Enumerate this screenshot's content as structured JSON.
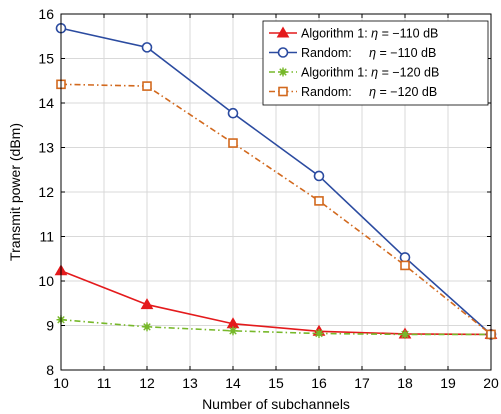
{
  "chart_data": {
    "type": "line",
    "title": "",
    "xlabel": "Number of subchannels",
    "ylabel": "Transmit power (dBm)",
    "x": [
      10,
      12,
      14,
      16,
      18,
      20
    ],
    "xlim": [
      10,
      20
    ],
    "ylim": [
      8,
      16
    ],
    "xticks": [
      10,
      11,
      12,
      13,
      14,
      15,
      16,
      17,
      18,
      19,
      20
    ],
    "yticks": [
      8,
      9,
      10,
      11,
      12,
      13,
      14,
      15,
      16
    ],
    "grid": true,
    "legend_position": "top-right",
    "series": [
      {
        "name": "Algorithm 1: η = −110 dB",
        "legend_prefix": "Algorithm 1: ",
        "legend_eta": "η",
        "legend_suffix": " = −110 dB",
        "color": "#e41a1c",
        "marker": "triangle",
        "dash": "solid",
        "values": [
          10.23,
          9.47,
          9.04,
          8.87,
          8.81,
          8.8
        ]
      },
      {
        "name": "Random:     η = −110 dB",
        "legend_prefix": "Random:     ",
        "legend_eta": "η",
        "legend_suffix": " = −110 dB",
        "color": "#2b4ba0",
        "marker": "circle",
        "dash": "solid",
        "values": [
          15.68,
          15.25,
          13.77,
          12.36,
          10.53,
          8.8
        ]
      },
      {
        "name": "Algorithm 1: η = −120 dB",
        "legend_prefix": "Algorithm 1: ",
        "legend_eta": "η",
        "legend_suffix": " = −120 dB",
        "color": "#77b82a",
        "marker": "asterisk",
        "dash": "dashdot",
        "values": [
          9.13,
          8.97,
          8.88,
          8.82,
          8.8,
          8.8
        ]
      },
      {
        "name": "Random:     η = −120 dB",
        "legend_prefix": "Random:     ",
        "legend_eta": "η",
        "legend_suffix": " = −120 dB",
        "color": "#d2691e",
        "marker": "square",
        "dash": "dashdot",
        "values": [
          14.42,
          14.38,
          13.1,
          11.8,
          10.35,
          8.8
        ]
      }
    ]
  }
}
